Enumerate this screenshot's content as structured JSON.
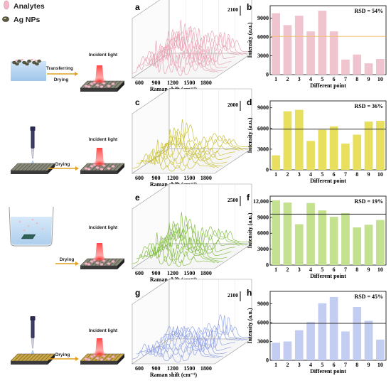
{
  "legend": {
    "analytes": "Analytes",
    "ag_nps": "Ag NPs"
  },
  "schematic": {
    "incident_light": "Incident light",
    "transferring": "Transferring",
    "drying": "Drying"
  },
  "colors": {
    "row1": "#f0c4cf",
    "row1_line": "#e8a6b6",
    "row2": "#e7df5d",
    "row2_line": "#c9c03a",
    "row3": "#c3e18f",
    "row3_line": "#86be4a",
    "row4": "#c3cdf2",
    "row4_line": "#93a4e4",
    "mean_line_row1": "#f2c07a",
    "mean_line": "#333333"
  },
  "spectra": {
    "x_label": "Raman shift (cm⁻¹)",
    "x_ticks": [
      "600",
      "900",
      "1200",
      "1500",
      "1800"
    ],
    "panels": [
      {
        "label": "a",
        "scale": "2100"
      },
      {
        "label": "c",
        "scale": "2000"
      },
      {
        "label": "e",
        "scale": "2500"
      },
      {
        "label": "g",
        "scale": "2100"
      }
    ]
  },
  "chart_data": [
    {
      "type": "bar",
      "label": "b",
      "rsd": "RSD = 54%",
      "categories": [
        "1",
        "2",
        "3",
        "4",
        "5",
        "6",
        "7",
        "8",
        "9",
        "10"
      ],
      "values": [
        9800,
        7900,
        9400,
        6900,
        10200,
        6900,
        2400,
        3200,
        1800,
        2500
      ],
      "mean": 6100,
      "ylim": [
        0,
        11000
      ],
      "y_ticks": [
        0,
        3000,
        6000,
        9000
      ],
      "y_tick_labels": [
        "0",
        "3000",
        "6000",
        "9000"
      ],
      "xlabel": "Different point",
      "ylabel": "Intensity (a.u.)"
    },
    {
      "type": "bar",
      "label": "d",
      "rsd": "RSD = 36%",
      "categories": [
        "1",
        "2",
        "3",
        "4",
        "5",
        "6",
        "7",
        "8",
        "9",
        "10"
      ],
      "values": [
        2100,
        8500,
        8700,
        4200,
        5800,
        6300,
        3800,
        5100,
        7000,
        7100
      ],
      "mean": 5900,
      "ylim": [
        0,
        10000
      ],
      "y_ticks": [
        0,
        3000,
        6000,
        9000
      ],
      "y_tick_labels": [
        "0",
        "3000",
        "6000",
        "9000"
      ],
      "xlabel": "Different point",
      "ylabel": "Intensity (a.u.)"
    },
    {
      "type": "bar",
      "label": "f",
      "rsd": "RSD = 19%",
      "categories": [
        "1",
        "2",
        "3",
        "4",
        "5",
        "6",
        "7",
        "8",
        "9",
        "10"
      ],
      "values": [
        12200,
        11800,
        7700,
        11700,
        10300,
        9100,
        9800,
        7100,
        7600,
        8500
      ],
      "mean": 9600,
      "ylim": [
        0,
        13000
      ],
      "y_ticks": [
        0,
        3000,
        6000,
        9000,
        12000
      ],
      "y_tick_labels": [
        "0",
        "3000",
        "6000",
        "9000",
        "12,000"
      ],
      "xlabel": "Different point",
      "ylabel": "Intensity (a.u.)"
    },
    {
      "type": "bar",
      "label": "h",
      "rsd": "RSD = 45%",
      "categories": [
        "1",
        "2",
        "3",
        "4",
        "5",
        "6",
        "7",
        "8",
        "9",
        "10"
      ],
      "values": [
        2800,
        3000,
        4800,
        6100,
        9100,
        10100,
        4600,
        8500,
        6300,
        3300
      ],
      "mean": 5900,
      "ylim": [
        0,
        11000
      ],
      "y_ticks": [
        0,
        3000,
        6000,
        9000
      ],
      "y_tick_labels": [
        "0",
        "3000",
        "6000",
        "9000"
      ],
      "xlabel": "Different point",
      "ylabel": "Intensity (a.u.)"
    }
  ]
}
